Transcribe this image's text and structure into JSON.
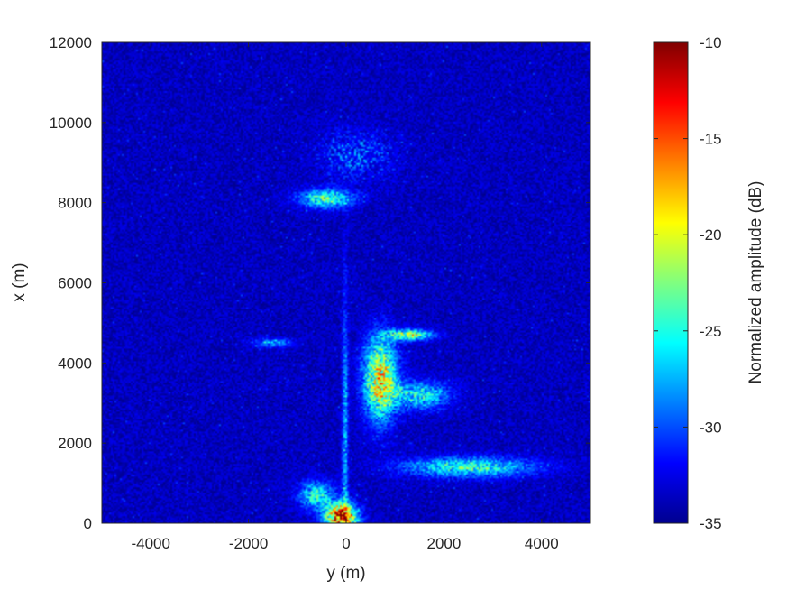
{
  "chart_data": {
    "type": "heatmap",
    "title": "",
    "xlabel": "y (m)",
    "ylabel": "x (m)",
    "xlim": [
      -5000,
      5000
    ],
    "ylim": [
      0,
      12000
    ],
    "x_ticks": [
      -4000,
      -2000,
      0,
      2000,
      4000
    ],
    "y_ticks": [
      0,
      2000,
      4000,
      6000,
      8000,
      10000,
      12000
    ],
    "x_tick_labels": [
      "-4000",
      "-2000",
      "0",
      "2000",
      "4000"
    ],
    "y_tick_labels": [
      "0",
      "2000",
      "4000",
      "6000",
      "8000",
      "10000",
      "12000"
    ],
    "colormap": "jet",
    "colorbar": {
      "label": "Normalized amplitude (dB)",
      "range": [
        -35,
        -10
      ],
      "ticks": [
        -35,
        -30,
        -25,
        -20,
        -15,
        -10
      ],
      "tick_labels": [
        "-35",
        "-30",
        "-25",
        "-20",
        "-15",
        "-10"
      ]
    },
    "background_level_db": -33.5,
    "grid": false,
    "features": [
      {
        "name": "upper return cluster",
        "y": -400,
        "x": 8100,
        "level_db": -25
      },
      {
        "name": "upper speckle arc",
        "y": 200,
        "x": 9200,
        "level_db": -28
      },
      {
        "name": "near-field origin",
        "y": -100,
        "x": 150,
        "level_db": -12
      },
      {
        "name": "central vertical streak",
        "y": -20,
        "x": 2000,
        "level_db": -28
      },
      {
        "name": "main return band",
        "y": 700,
        "x": 3600,
        "level_db": -18
      },
      {
        "name": "return arc",
        "y": 1300,
        "x": 4700,
        "level_db": -20
      },
      {
        "name": "lower right returns",
        "y": 2500,
        "x": 1400,
        "level_db": -26
      },
      {
        "name": "left returns",
        "y": -1500,
        "x": 4500,
        "level_db": -29
      }
    ]
  }
}
